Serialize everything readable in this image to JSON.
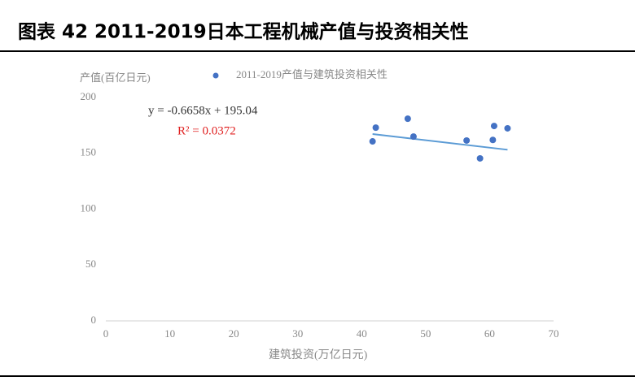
{
  "figure_title": "图表 42  2011-2019日本工程机械产值与投资相关性",
  "chart_data": {
    "type": "scatter",
    "y_label": "产值(百亿日元)",
    "x_label": "建筑投资(万亿日元)",
    "series": [
      {
        "name": "2011-2019产值与建筑投资相关性",
        "color": "#4472c4",
        "x": [
          41.7,
          42.2,
          47.2,
          48.1,
          56.4,
          58.5,
          60.5,
          60.7,
          62.8
        ],
        "values": [
          160.7,
          173,
          181,
          165,
          161.5,
          145.5,
          162,
          174.5,
          172.4
        ]
      }
    ],
    "trendline": {
      "label": "y = -0.6658x + 195.04",
      "slope": -0.6658,
      "intercept": 195.04,
      "color": "#5b9bd5"
    },
    "r2_label": "R² = 0.0372",
    "xlim": [
      0,
      70
    ],
    "xticks": [
      0,
      10,
      20,
      30,
      40,
      50,
      60,
      70
    ],
    "ylim": [
      0,
      200
    ],
    "yticks": [
      0,
      50,
      100,
      150,
      200
    ],
    "grid": false
  }
}
